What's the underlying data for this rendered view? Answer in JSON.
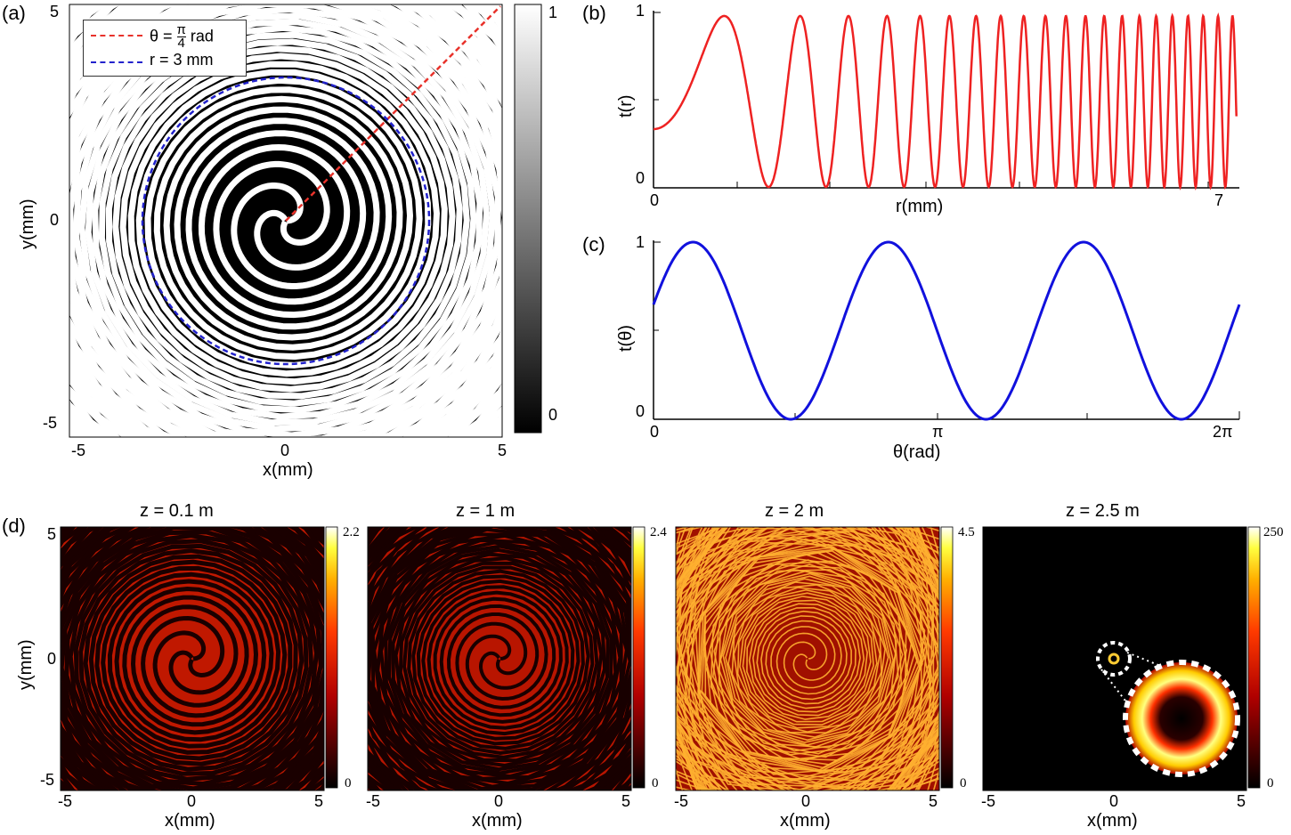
{
  "panels": {
    "a": {
      "label": "(a)",
      "xlabel": "x(mm)",
      "ylabel": "y(mm)",
      "xticks": [
        "-5",
        "0",
        "5"
      ],
      "yticks": [
        "5",
        "0",
        "-5"
      ],
      "colorbar_ticks": [
        "1",
        "0"
      ],
      "legend": [
        {
          "prefix": "θ = ",
          "num": "π",
          "den": "4",
          "suffix": " rad",
          "color": "#e8322b"
        },
        {
          "text": "r = 3 mm",
          "color": "#2222cc"
        }
      ]
    },
    "b": {
      "label": "(b)",
      "xlabel": "r(mm)",
      "ylabel": "t(r)",
      "xticks": [
        "0",
        "7"
      ],
      "yticks": [
        "1",
        "0"
      ],
      "color": "#ee2222"
    },
    "c": {
      "label": "(c)",
      "xlabel": "θ(rad)",
      "ylabel": "t(θ)",
      "xticks": [
        "0",
        "π",
        "2π"
      ],
      "yticks": [
        "1",
        "0"
      ],
      "color": "#1111dd"
    },
    "d": {
      "label": "(d)",
      "ylabel": "y(mm)",
      "yticks": [
        "5",
        "0",
        "-5"
      ],
      "subplots": [
        {
          "title": "z = 0.1 m",
          "xlabel": "x(mm)",
          "xticks": [
            "-5",
            "0",
            "5"
          ],
          "cb_max": "2.2",
          "cb_min": "0"
        },
        {
          "title": "z = 1 m",
          "xlabel": "x(mm)",
          "xticks": [
            "-5",
            "0",
            "5"
          ],
          "cb_max": "2.4",
          "cb_min": "0"
        },
        {
          "title": "z = 2 m",
          "xlabel": "x(mm)",
          "xticks": [
            "-5",
            "0",
            "5"
          ],
          "cb_max": "4.5",
          "cb_min": "0"
        },
        {
          "title": "z = 2.5 m",
          "xlabel": "x(mm)",
          "xticks": [
            "-5",
            "0",
            "5"
          ],
          "cb_max": "250",
          "cb_min": "0"
        }
      ]
    }
  },
  "chart_data": [
    {
      "type": "heatmap",
      "panel": "a",
      "xlabel": "x(mm)",
      "ylabel": "y(mm)",
      "xlim": [
        -5,
        5
      ],
      "ylim": [
        -5,
        5
      ],
      "colormap": "gray",
      "clim": [
        0,
        1
      ],
      "description": "",
      "lines": [
        {
          "name": "θ = π/4 rad",
          "style": "dashed",
          "color": "#e8322b",
          "from": [
            0,
            0
          ],
          "to": [
            5,
            5
          ]
        },
        {
          "name": "r = 3 mm",
          "style": "dashed",
          "color": "#2222cc",
          "circle_radius": 3
        }
      ]
    },
    {
      "type": "line",
      "panel": "b",
      "xlabel": "r(mm)",
      "ylabel": "t(r)",
      "xlim": [
        0,
        7
      ],
      "ylim": [
        0,
        1
      ],
      "series": [
        {
          "name": "",
          "color": "#ee2222",
          "x": [
            0,
            0.5,
            1.0,
            1.4,
            1.75,
            2.1,
            2.45,
            2.75,
            3.05,
            3.3,
            3.55,
            3.8,
            4.05,
            4.3,
            4.55,
            4.8,
            5.0,
            5.2,
            5.4,
            5.6,
            5.8,
            6.0,
            6.2,
            6.4,
            6.6,
            6.8,
            7.0
          ],
          "y": [
            0.58,
            0.75,
            1.0,
            0.0,
            1.0,
            0.0,
            1.0,
            0.0,
            1.0,
            0.0,
            1.0,
            0.0,
            1.0,
            0.0,
            1.0,
            0.0,
            1.0,
            0.0,
            1.0,
            0.0,
            1.0,
            0.0,
            1.0,
            0.0,
            1.0,
            0.0,
            1.0
          ]
        }
      ]
    },
    {
      "type": "line",
      "panel": "c",
      "xlabel": "θ(rad)",
      "ylabel": "t(θ)",
      "xlim": [
        0,
        6.2832
      ],
      "ylim": [
        0,
        1
      ],
      "series": [
        {
          "name": "",
          "color": "#1111dd",
          "function": "0.5 + 0.5*sin(3θ + 0.3)",
          "x": [
            0,
            0.42,
            1.47,
            2.51,
            3.56,
            4.61,
            5.66,
            6.2832
          ],
          "y": [
            0.65,
            1.0,
            0.0,
            1.0,
            0.0,
            1.0,
            0.0,
            0.65
          ]
        }
      ]
    },
    {
      "type": "heatmap",
      "panel": "d1",
      "title": "z = 0.1 m",
      "xlabel": "x(mm)",
      "ylabel": "y(mm)",
      "xlim": [
        -5,
        5
      ],
      "ylim": [
        -5,
        5
      ],
      "colormap": "hot",
      "clim": [
        0,
        2.2
      ]
    },
    {
      "type": "heatmap",
      "panel": "d2",
      "title": "z = 1 m",
      "xlabel": "x(mm)",
      "xlim": [
        -5,
        5
      ],
      "ylim": [
        -5,
        5
      ],
      "colormap": "hot",
      "clim": [
        0,
        2.4
      ]
    },
    {
      "type": "heatmap",
      "panel": "d3",
      "title": "z = 2 m",
      "xlabel": "x(mm)",
      "xlim": [
        -5,
        5
      ],
      "ylim": [
        -5,
        5
      ],
      "colormap": "hot",
      "clim": [
        0,
        4.5
      ]
    },
    {
      "type": "heatmap",
      "panel": "d4",
      "title": "z = 2.5 m",
      "xlabel": "x(mm)",
      "xlim": [
        -5,
        5
      ],
      "ylim": [
        -5,
        5
      ],
      "colormap": "hot",
      "clim": [
        0,
        250
      ]
    }
  ]
}
